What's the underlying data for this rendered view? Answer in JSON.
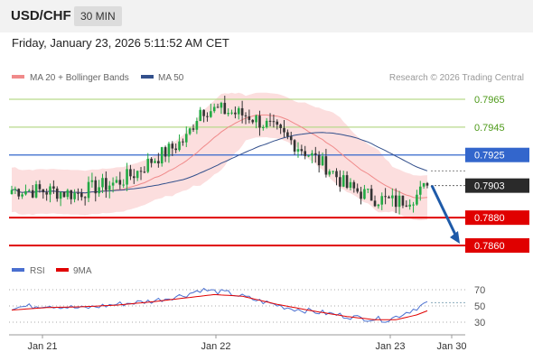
{
  "header": {
    "pair": "USD/CHF",
    "timeframe": "30 MIN",
    "datetime": "Friday, January 23, 2026 5:11:52 AM CET"
  },
  "legend": {
    "bollinger": "MA 20 + Bollinger Bands",
    "ma50": "MA 50",
    "credit": "Research © 2026 Trading Central"
  },
  "rsi_legend": {
    "rsi": "RSI",
    "ma": "9MA"
  },
  "colors": {
    "up": "#22aa44",
    "down": "#333333",
    "bands": "#fcdede",
    "ma20": "#f08a8a",
    "ma50": "#33508c",
    "resistance": "#b9d98c",
    "pivot_line": "#3366cc",
    "support": "#e00000",
    "arrow": "#1e5aa8",
    "rsi": "#4a6fd0",
    "rsi_ma": "#e00000"
  },
  "chart_data": [
    {
      "type": "candlestick",
      "title": "USD/CHF 30 MIN",
      "x_ticks": [
        "Jan 21",
        "Jan 22",
        "Jan 23",
        "Jan 30"
      ],
      "ylim": [
        0.7855,
        0.7975
      ],
      "current_price": 0.7903,
      "levels": [
        {
          "value": 0.7965,
          "label": "0.7965",
          "kind": "resistance"
        },
        {
          "value": 0.7945,
          "label": "0.7945",
          "kind": "resistance"
        },
        {
          "value": 0.7925,
          "label": "0.7925",
          "kind": "pivot"
        },
        {
          "value": 0.7903,
          "label": "0.7903",
          "kind": "last"
        },
        {
          "value": 0.788,
          "label": "0.7880",
          "kind": "support"
        },
        {
          "value": 0.786,
          "label": "0.7860",
          "kind": "support"
        }
      ],
      "forecast": {
        "from": 0.7903,
        "to": 0.786,
        "direction": "down"
      },
      "ohlc_anchors": [
        {
          "i": 0,
          "close": 0.79
        },
        {
          "i": 12,
          "close": 0.7899
        },
        {
          "i": 18,
          "close": 0.7897
        },
        {
          "i": 24,
          "close": 0.7902
        },
        {
          "i": 30,
          "close": 0.7905
        },
        {
          "i": 36,
          "close": 0.7913
        },
        {
          "i": 40,
          "close": 0.7921
        },
        {
          "i": 46,
          "close": 0.793
        },
        {
          "i": 50,
          "close": 0.7937
        },
        {
          "i": 54,
          "close": 0.7958
        },
        {
          "i": 60,
          "close": 0.7957
        },
        {
          "i": 68,
          "close": 0.7953
        },
        {
          "i": 74,
          "close": 0.7945
        },
        {
          "i": 80,
          "close": 0.7935
        },
        {
          "i": 86,
          "close": 0.7924
        },
        {
          "i": 91,
          "close": 0.7915
        },
        {
          "i": 96,
          "close": 0.7902
        },
        {
          "i": 104,
          "close": 0.7894
        },
        {
          "i": 110,
          "close": 0.7891
        },
        {
          "i": 116,
          "close": 0.7896
        },
        {
          "i": 119,
          "close": 0.7903
        }
      ],
      "indicators": [
        "MA 20 + Bollinger Bands",
        "MA 50"
      ]
    },
    {
      "type": "line",
      "title": "RSI",
      "y_ticks": [
        "70",
        "50",
        "30"
      ],
      "ylim": [
        20,
        80
      ],
      "series": [
        {
          "name": "RSI",
          "anchors": [
            [
              0,
              48
            ],
            [
              10,
              51
            ],
            [
              20,
              47
            ],
            [
              30,
              52
            ],
            [
              40,
              56
            ],
            [
              50,
              64
            ],
            [
              54,
              70
            ],
            [
              62,
              66
            ],
            [
              72,
              55
            ],
            [
              80,
              47
            ],
            [
              90,
              41
            ],
            [
              100,
              35
            ],
            [
              108,
              33
            ],
            [
              114,
              44
            ],
            [
              119,
              54
            ]
          ]
        },
        {
          "name": "9MA",
          "anchors": [
            [
              0,
              45
            ],
            [
              10,
              48
            ],
            [
              20,
              49
            ],
            [
              30,
              51
            ],
            [
              40,
              55
            ],
            [
              50,
              60
            ],
            [
              58,
              64
            ],
            [
              66,
              62
            ],
            [
              76,
              52
            ],
            [
              86,
              44
            ],
            [
              96,
              37
            ],
            [
              104,
              33
            ],
            [
              110,
              33
            ],
            [
              116,
              39
            ],
            [
              119,
              44
            ]
          ]
        }
      ]
    }
  ]
}
